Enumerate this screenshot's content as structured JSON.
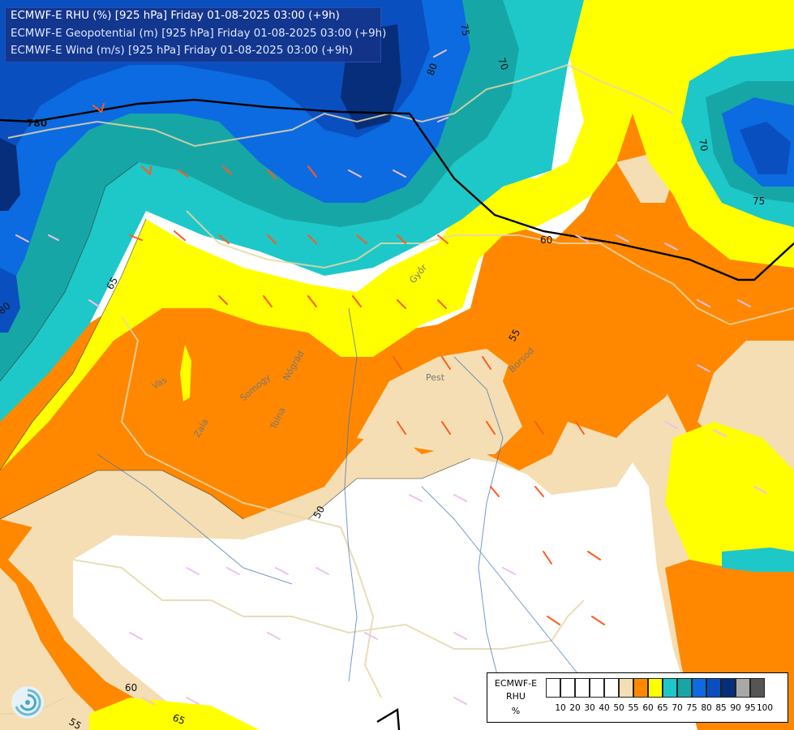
{
  "titles": [
    "ECMWF-E RHU (%) [925 hPa] Friday 01-08-2025 03:00 (+9h)",
    "ECMWF-E Geopotential (m) [925 hPa] Friday 01-08-2025 03:00 (+9h)",
    "ECMWF-E Wind (m/s) [925 hPa] Friday 01-08-2025 03:00 (+9h)"
  ],
  "legend": {
    "line1": "ECMWF-E",
    "line2": "RHU",
    "line3": "%",
    "colors": [
      "#ffffff",
      "#ffffff",
      "#ffffff",
      "#ffffff",
      "#ffffff",
      "#f5deb3",
      "#ff8800",
      "#ffff00",
      "#1ec8c8",
      "#17a6a6",
      "#0c6be0",
      "#0a4fc0",
      "#072e7a",
      "#a8a8a8",
      "#555555"
    ],
    "ticks": [
      "10",
      "20",
      "30",
      "40",
      "50",
      "55",
      "60",
      "65",
      "70",
      "75",
      "80",
      "85",
      "90",
      "95",
      "100"
    ]
  },
  "contour_labels": {
    "geo_780": "780",
    "c75a": "75",
    "c70a": "70",
    "c80a": "80",
    "c70b": "70",
    "c75b": "75",
    "c60a": "60",
    "c65a": "65",
    "c80b": "80",
    "c55a": "55",
    "c50a": "50",
    "c60b": "60",
    "c55b": "55",
    "c65b": "65"
  },
  "places": {
    "pest": "Pest",
    "borsod": "Borsod",
    "vas": "Vas",
    "zala": "Zala",
    "tolna": "Tolna",
    "somogy": "Somogy",
    "gyor": "Győr",
    "nograd": "Nógrád"
  }
}
